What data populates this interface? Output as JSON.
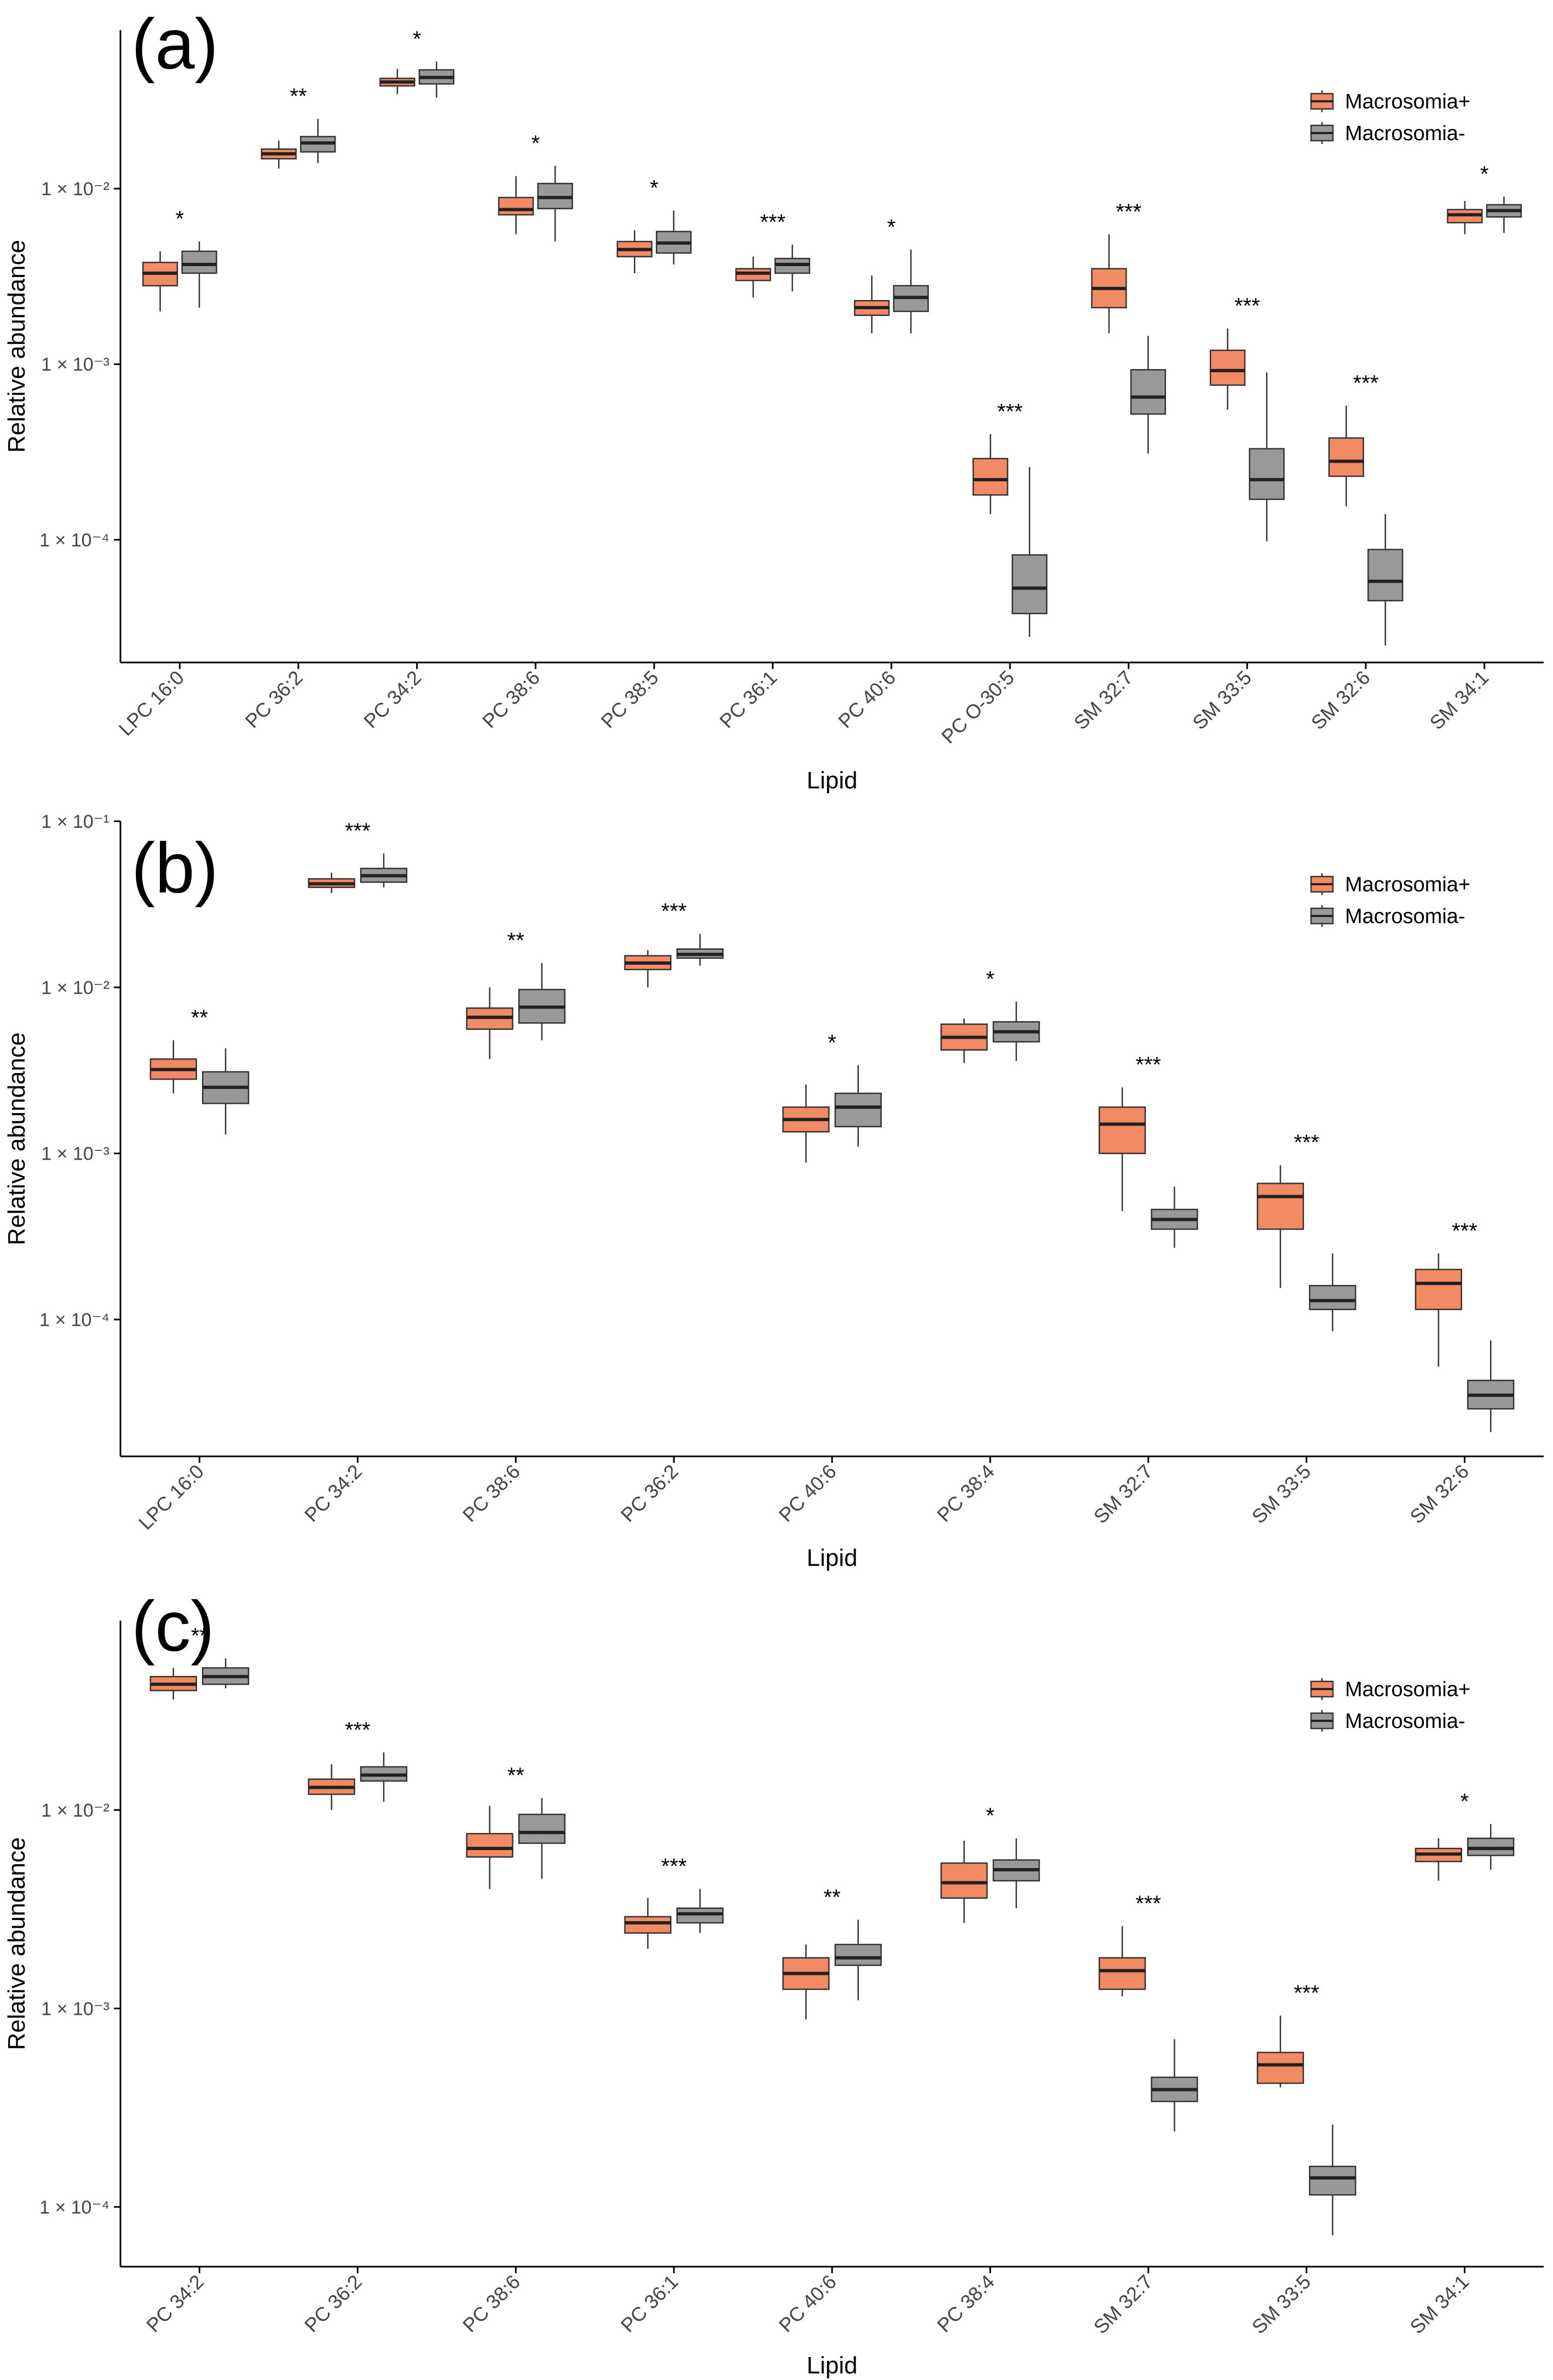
{
  "figure": {
    "legend_position": "top-right",
    "colors": {
      "macrosomia_pos": "#F28A63",
      "macrosomia_neg": "#999999",
      "median": "#222222",
      "axis": "#000000"
    }
  },
  "chart_data": [
    {
      "type": "box",
      "panel_label": "(a)",
      "xlabel": "Lipid",
      "ylabel": "Relative abundance",
      "yscale": "log",
      "ylim": [
        2e-05,
        0.08
      ],
      "yticks": [
        0.0001,
        0.001,
        0.01
      ],
      "ytick_labels": [
        "1 × 10⁻⁴",
        "1 × 10⁻³",
        "1 × 10⁻²"
      ],
      "grid": false,
      "legend": [
        "Macrosomia+",
        "Macrosomia-"
      ],
      "categories": [
        "LPC 16:0",
        "PC 36:2",
        "PC 34:2",
        "PC 38:6",
        "PC 38:5",
        "PC 36:1",
        "PC 40:6",
        "PC O-30:5",
        "SM 32:7",
        "SM 33:5",
        "SM 32:6",
        "SM 34:1"
      ],
      "significance": [
        "*",
        "**",
        "*",
        "*",
        "*",
        "***",
        "*",
        "***",
        "***",
        "***",
        "***",
        "*"
      ],
      "series": [
        {
          "name": "Macrosomia+",
          "boxes": [
            [
              0.002,
              0.0028,
              0.0033,
              0.0038,
              0.0044
            ],
            [
              0.013,
              0.0148,
              0.0158,
              0.0168,
              0.0188
            ],
            [
              0.0345,
              0.0385,
              0.0405,
              0.0425,
              0.048
            ],
            [
              0.0055,
              0.0071,
              0.0076,
              0.0089,
              0.0118
            ],
            [
              0.0033,
              0.0041,
              0.0045,
              0.005,
              0.0058
            ],
            [
              0.0024,
              0.003,
              0.0033,
              0.0035,
              0.0041
            ],
            [
              0.0015,
              0.0019,
              0.0021,
              0.0023,
              0.0032
            ],
            [
              0.00014,
              0.00018,
              0.00022,
              0.00029,
              0.0004
            ],
            [
              0.0015,
              0.0021,
              0.0027,
              0.0035,
              0.0055
            ],
            [
              0.00055,
              0.00076,
              0.00092,
              0.0012,
              0.0016
            ],
            [
              0.000155,
              0.00023,
              0.00028,
              0.00038,
              0.00058
            ],
            [
              0.0055,
              0.0064,
              0.0071,
              0.0076,
              0.0085
            ]
          ]
        },
        {
          "name": "Macrosomia-",
          "boxes": [
            [
              0.0021,
              0.0033,
              0.0037,
              0.0044,
              0.005
            ],
            [
              0.014,
              0.0162,
              0.0182,
              0.0198,
              0.025
            ],
            [
              0.033,
              0.0395,
              0.043,
              0.0475,
              0.053
            ],
            [
              0.005,
              0.0077,
              0.0089,
              0.0107,
              0.0135
            ],
            [
              0.0037,
              0.0043,
              0.0049,
              0.0057,
              0.0075
            ],
            [
              0.0026,
              0.0033,
              0.0037,
              0.004,
              0.0048
            ],
            [
              0.0015,
              0.002,
              0.0024,
              0.0028,
              0.0045
            ],
            [
              2.8e-05,
              3.8e-05,
              5.3e-05,
              8.2e-05,
              0.00026
            ],
            [
              0.00031,
              0.00052,
              0.00065,
              0.00093,
              0.00145
            ],
            [
              9.8e-05,
              0.00017,
              0.00022,
              0.00033,
              0.0009
            ],
            [
              2.5e-05,
              4.5e-05,
              5.8e-05,
              8.8e-05,
              0.00014
            ],
            [
              0.0056,
              0.0069,
              0.0075,
              0.0081,
              0.009
            ]
          ]
        }
      ]
    },
    {
      "type": "box",
      "panel_label": "(b)",
      "xlabel": "Lipid",
      "ylabel": "Relative abundance",
      "yscale": "log",
      "ylim": [
        1.5e-05,
        0.1
      ],
      "yticks": [
        0.0001,
        0.001,
        0.01,
        0.1
      ],
      "ytick_labels": [
        "1 × 10⁻⁴",
        "1 × 10⁻³",
        "1 × 10⁻²",
        "1 × 10⁻¹"
      ],
      "grid": false,
      "legend": [
        "Macrosomia+",
        "Macrosomia-"
      ],
      "categories": [
        "LPC 16:0",
        "PC 34:2",
        "PC 38:6",
        "PC 36:2",
        "PC 40:6",
        "PC 38:4",
        "SM 32:7",
        "SM 33:5",
        "SM 32:6"
      ],
      "significance": [
        "**",
        "***",
        "**",
        "***",
        "*",
        "*",
        "***",
        "***",
        "***"
      ],
      "series": [
        {
          "name": "Macrosomia+",
          "boxes": [
            [
              0.0023,
              0.0028,
              0.0032,
              0.0037,
              0.0048
            ],
            [
              0.037,
              0.04,
              0.042,
              0.045,
              0.049
            ],
            [
              0.0037,
              0.0056,
              0.0066,
              0.0075,
              0.01
            ],
            [
              0.01,
              0.0128,
              0.014,
              0.0155,
              0.0168
            ],
            [
              0.00088,
              0.00135,
              0.0016,
              0.0019,
              0.0026
            ],
            [
              0.0035,
              0.0042,
              0.005,
              0.006,
              0.0065
            ],
            [
              0.00045,
              0.001,
              0.0015,
              0.0019,
              0.0025
            ],
            [
              0.000155,
              0.00035,
              0.00055,
              0.00066,
              0.00085
            ],
            [
              5.2e-05,
              0.000115,
              0.000165,
              0.0002,
              0.00025
            ]
          ]
        },
        {
          "name": "Macrosomia-",
          "boxes": [
            [
              0.0013,
              0.002,
              0.0025,
              0.0031,
              0.0043
            ],
            [
              0.04,
              0.043,
              0.047,
              0.052,
              0.064
            ],
            [
              0.0048,
              0.0061,
              0.0076,
              0.0097,
              0.014
            ],
            [
              0.0135,
              0.015,
              0.0158,
              0.017,
              0.021
            ],
            [
              0.0011,
              0.00145,
              0.0019,
              0.0023,
              0.0034
            ],
            [
              0.0036,
              0.0047,
              0.0054,
              0.0062,
              0.0082
            ],
            [
              0.00027,
              0.00035,
              0.0004,
              0.00046,
              0.00063
            ],
            [
              8.5e-05,
              0.000115,
              0.00013,
              0.00016,
              0.00025
            ],
            [
              2.1e-05,
              2.9e-05,
              3.5e-05,
              4.3e-05,
              7.5e-05
            ]
          ]
        }
      ]
    },
    {
      "type": "box",
      "panel_label": "(c)",
      "xlabel": "Lipid",
      "ylabel": "Relative abundance",
      "yscale": "log",
      "ylim": [
        5e-05,
        0.09
      ],
      "yticks": [
        0.0001,
        0.001,
        0.01
      ],
      "ytick_labels": [
        "1 × 10⁻⁴",
        "1 × 10⁻³",
        "1 × 10⁻²"
      ],
      "grid": false,
      "legend": [
        "Macrosomia+",
        "Macrosomia-"
      ],
      "categories": [
        "PC 34:2",
        "PC 36:2",
        "PC 38:6",
        "PC 36:1",
        "PC 40:6",
        "PC 38:4",
        "SM 32:7",
        "SM 33:5",
        "SM 34:1"
      ],
      "significance": [
        "**",
        "***",
        "**",
        "***",
        "**",
        "*",
        "***",
        "***",
        "*"
      ],
      "series": [
        {
          "name": "Macrosomia+",
          "boxes": [
            [
              0.036,
              0.04,
              0.043,
              0.047,
              0.052
            ],
            [
              0.01,
              0.012,
              0.013,
              0.0143,
              0.017
            ],
            [
              0.004,
              0.0058,
              0.0064,
              0.0076,
              0.0105
            ],
            [
              0.002,
              0.0024,
              0.0027,
              0.0029,
              0.0036
            ],
            [
              0.00088,
              0.00125,
              0.0015,
              0.0018,
              0.0021
            ],
            [
              0.0027,
              0.0036,
              0.0043,
              0.0054,
              0.007
            ],
            [
              0.00115,
              0.00125,
              0.00155,
              0.0018,
              0.0026
            ],
            [
              0.0004,
              0.00042,
              0.00052,
              0.0006,
              0.00092
            ],
            [
              0.0044,
              0.0055,
              0.006,
              0.0064,
              0.0072
            ]
          ]
        },
        {
          "name": "Macrosomia-",
          "boxes": [
            [
              0.041,
              0.043,
              0.047,
              0.052,
              0.058
            ],
            [
              0.011,
              0.014,
              0.015,
              0.0165,
              0.0195
            ],
            [
              0.0045,
              0.0068,
              0.0077,
              0.0095,
              0.0115
            ],
            [
              0.0024,
              0.0027,
              0.003,
              0.0032,
              0.004
            ],
            [
              0.0011,
              0.00165,
              0.0018,
              0.0021,
              0.0028
            ],
            [
              0.0032,
              0.0044,
              0.005,
              0.0056,
              0.0072
            ],
            [
              0.00024,
              0.00034,
              0.00039,
              0.00045,
              0.0007
            ],
            [
              7.2e-05,
              0.000115,
              0.00014,
              0.00016,
              0.00026
            ],
            [
              0.005,
              0.0059,
              0.0064,
              0.0072,
              0.0085
            ]
          ]
        }
      ]
    }
  ]
}
